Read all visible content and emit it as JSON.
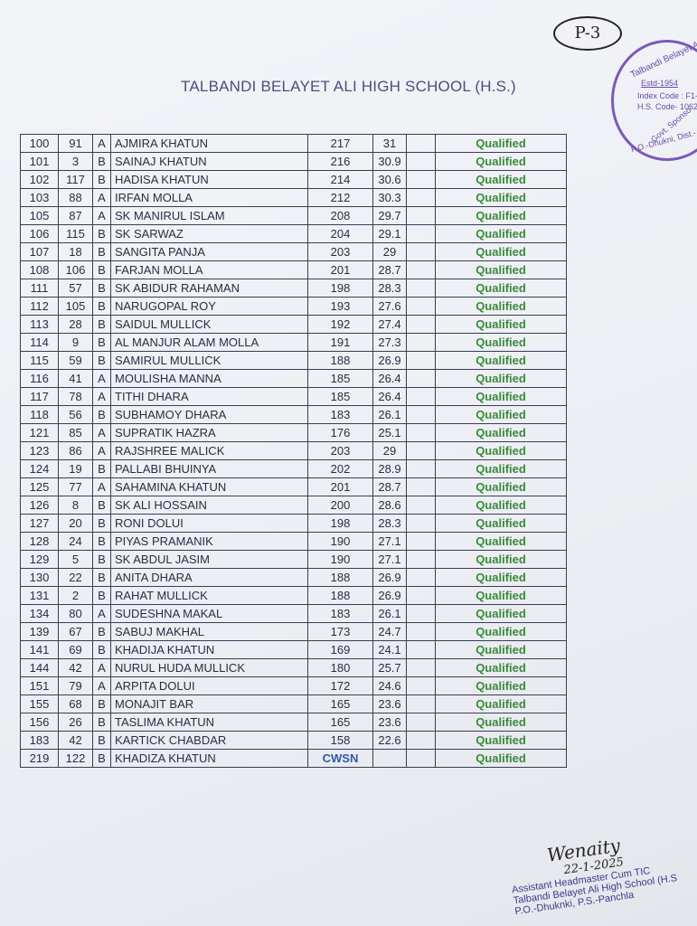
{
  "header": {
    "title": "TALBANDI BELAYET ALI HIGH SCHOOL (H.S.)",
    "page_mark": "P-3"
  },
  "stamp": {
    "lines": [
      "Talbandi Belayet Ali High",
      "Estd-1954",
      "Index Code : F1-",
      "H.S. Code- 1062",
      "Govt. Sponso",
      "P.O.-Dhukni, Dist.-"
    ]
  },
  "table": {
    "rows": [
      {
        "sl": "100",
        "roll": "91",
        "section": "A",
        "name": "AJMIRA KHATUN",
        "marks": "217",
        "percent": "31",
        "status": "Qualified"
      },
      {
        "sl": "101",
        "roll": "3",
        "section": "B",
        "name": "SAINAJ KHATUN",
        "marks": "216",
        "percent": "30.9",
        "status": "Qualified"
      },
      {
        "sl": "102",
        "roll": "117",
        "section": "B",
        "name": "HADISA KHATUN",
        "marks": "214",
        "percent": "30.6",
        "status": "Qualified"
      },
      {
        "sl": "103",
        "roll": "88",
        "section": "A",
        "name": "IRFAN MOLLA",
        "marks": "212",
        "percent": "30.3",
        "status": "Qualified"
      },
      {
        "sl": "105",
        "roll": "87",
        "section": "A",
        "name": "SK MANIRUL ISLAM",
        "marks": "208",
        "percent": "29.7",
        "status": "Qualified"
      },
      {
        "sl": "106",
        "roll": "115",
        "section": "B",
        "name": "SK SARWAZ",
        "marks": "204",
        "percent": "29.1",
        "status": "Qualified"
      },
      {
        "sl": "107",
        "roll": "18",
        "section": "B",
        "name": "SANGITA PANJA",
        "marks": "203",
        "percent": "29",
        "status": "Qualified"
      },
      {
        "sl": "108",
        "roll": "106",
        "section": "B",
        "name": "FARJAN MOLLA",
        "marks": "201",
        "percent": "28.7",
        "status": "Qualified"
      },
      {
        "sl": "111",
        "roll": "57",
        "section": "B",
        "name": "SK ABIDUR RAHAMAN",
        "marks": "198",
        "percent": "28.3",
        "status": "Qualified"
      },
      {
        "sl": "112",
        "roll": "105",
        "section": "B",
        "name": "NARUGOPAL ROY",
        "marks": "193",
        "percent": "27.6",
        "status": "Qualified"
      },
      {
        "sl": "113",
        "roll": "28",
        "section": "B",
        "name": "SAIDUL MULLICK",
        "marks": "192",
        "percent": "27.4",
        "status": "Qualified"
      },
      {
        "sl": "114",
        "roll": "9",
        "section": "B",
        "name": "AL MANJUR ALAM MOLLA",
        "marks": "191",
        "percent": "27.3",
        "status": "Qualified"
      },
      {
        "sl": "115",
        "roll": "59",
        "section": "B",
        "name": "SAMIRUL MULLICK",
        "marks": "188",
        "percent": "26.9",
        "status": "Qualified"
      },
      {
        "sl": "116",
        "roll": "41",
        "section": "A",
        "name": "MOULISHA MANNA",
        "marks": "185",
        "percent": "26.4",
        "status": "Qualified"
      },
      {
        "sl": "117",
        "roll": "78",
        "section": "A",
        "name": "TITHI DHARA",
        "marks": "185",
        "percent": "26.4",
        "status": "Qualified"
      },
      {
        "sl": "118",
        "roll": "56",
        "section": "B",
        "name": "SUBHAMOY DHARA",
        "marks": "183",
        "percent": "26.1",
        "status": "Qualified"
      },
      {
        "sl": "121",
        "roll": "85",
        "section": "A",
        "name": "SUPRATIK HAZRA",
        "marks": "176",
        "percent": "25.1",
        "status": "Qualified"
      },
      {
        "sl": "123",
        "roll": "86",
        "section": "A",
        "name": "RAJSHREE MALICK",
        "marks": "203",
        "percent": "29",
        "status": "Qualified"
      },
      {
        "sl": "124",
        "roll": "19",
        "section": "B",
        "name": "PALLABI BHUINYA",
        "marks": "202",
        "percent": "28.9",
        "status": "Qualified"
      },
      {
        "sl": "125",
        "roll": "77",
        "section": "A",
        "name": "SAHAMINA KHATUN",
        "marks": "201",
        "percent": "28.7",
        "status": "Qualified"
      },
      {
        "sl": "126",
        "roll": "8",
        "section": "B",
        "name": "SK ALI HOSSAIN",
        "marks": "200",
        "percent": "28.6",
        "status": "Qualified"
      },
      {
        "sl": "127",
        "roll": "20",
        "section": "B",
        "name": "RONI DOLUI",
        "marks": "198",
        "percent": "28.3",
        "status": "Qualified"
      },
      {
        "sl": "128",
        "roll": "24",
        "section": "B",
        "name": "PIYAS PRAMANIK",
        "marks": "190",
        "percent": "27.1",
        "status": "Qualified"
      },
      {
        "sl": "129",
        "roll": "5",
        "section": "B",
        "name": "SK ABDUL JASIM",
        "marks": "190",
        "percent": "27.1",
        "status": "Qualified"
      },
      {
        "sl": "130",
        "roll": "22",
        "section": "B",
        "name": "ANITA DHARA",
        "marks": "188",
        "percent": "26.9",
        "status": "Qualified"
      },
      {
        "sl": "131",
        "roll": "2",
        "section": "B",
        "name": "RAHAT MULLICK",
        "marks": "188",
        "percent": "26.9",
        "status": "Qualified"
      },
      {
        "sl": "134",
        "roll": "80",
        "section": "A",
        "name": "SUDESHNA  MAKAL",
        "marks": "183",
        "percent": "26.1",
        "status": "Qualified"
      },
      {
        "sl": "139",
        "roll": "67",
        "section": "B",
        "name": "SABUJ MAKHAL",
        "marks": "173",
        "percent": "24.7",
        "status": "Qualified"
      },
      {
        "sl": "141",
        "roll": "69",
        "section": "B",
        "name": "KHADIJA KHATUN",
        "marks": "169",
        "percent": "24.1",
        "status": "Qualified"
      },
      {
        "sl": "144",
        "roll": "42",
        "section": "A",
        "name": "NURUL HUDA MULLICK",
        "marks": "180",
        "percent": "25.7",
        "status": "Qualified"
      },
      {
        "sl": "151",
        "roll": "79",
        "section": "A",
        "name": "ARPITA DOLUI",
        "marks": "172",
        "percent": "24.6",
        "status": "Qualified"
      },
      {
        "sl": "155",
        "roll": "68",
        "section": "B",
        "name": "MONAJIT BAR",
        "marks": "165",
        "percent": "23.6",
        "status": "Qualified"
      },
      {
        "sl": "156",
        "roll": "26",
        "section": "B",
        "name": "TASLIMA KHATUN",
        "marks": "165",
        "percent": "23.6",
        "status": "Qualified"
      },
      {
        "sl": "183",
        "roll": "42",
        "section": "B",
        "name": "KARTICK CHABDAR",
        "marks": "158",
        "percent": "22.6",
        "status": "Qualified"
      },
      {
        "sl": "219",
        "roll": "122",
        "section": "B",
        "name": "KHADIZA KHATUN",
        "marks": "CWSN",
        "status": "Qualified"
      }
    ]
  },
  "signature": {
    "scrawl": "Wenaity",
    "date": "22-1-2025",
    "lines": [
      "Assistant Headmaster Cum TIC",
      "Talbandi Belayet Ali High School (H.S",
      "P.O.-Dhuknki, P.S.-Panchla"
    ]
  }
}
